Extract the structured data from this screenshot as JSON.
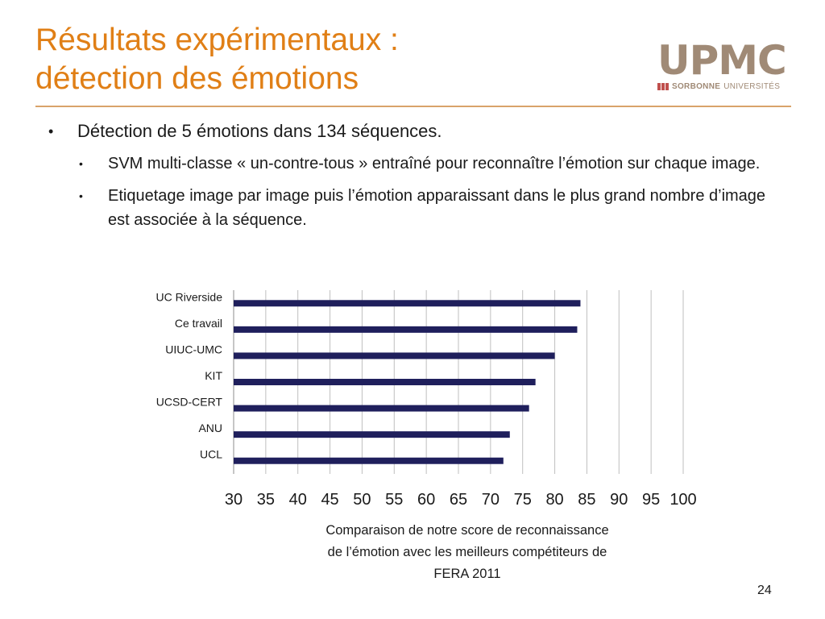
{
  "slide": {
    "title_line1": "Résultats expérimentaux :",
    "title_line2": "détection des émotions",
    "page_number": "24"
  },
  "logo": {
    "main": "UPMC",
    "sub_bold": "SORBONNE",
    "sub_regular": "UNIVERSITÉS",
    "color": "#a08a76",
    "marks_color": "#c0504d"
  },
  "content": {
    "bullet1": "Détection de 5 émotions dans 134 séquences.",
    "sub1": "SVM multi-classe « un-contre-tous » entraîné pour reconnaître l’émotion sur chaque image.",
    "sub2": "Etiquetage image par image puis l’émotion apparaissant dans le plus grand nombre d’image est associée à la séquence."
  },
  "caption": {
    "line1": "Comparaison de notre score de reconnaissance",
    "line2": "de l’émotion avec les meilleurs compétiteurs de",
    "line3": "FERA 2011"
  },
  "colors": {
    "title": "#e07f16",
    "bar": "#1f1f5c",
    "grid": "#bfbfbf"
  },
  "chart_data": {
    "type": "bar",
    "orientation": "horizontal",
    "categories": [
      "UC Riverside",
      "Ce travail",
      "UIUC-UMC",
      "KIT",
      "UCSD-CERT",
      "ANU",
      "UCL"
    ],
    "values": [
      84,
      83.5,
      80,
      77,
      76,
      73,
      72
    ],
    "xlim": [
      30,
      100
    ],
    "xticks": [
      30,
      35,
      40,
      45,
      50,
      55,
      60,
      65,
      70,
      75,
      80,
      85,
      90,
      95,
      100
    ],
    "grid": true,
    "title": "",
    "xlabel": "",
    "ylabel": ""
  }
}
